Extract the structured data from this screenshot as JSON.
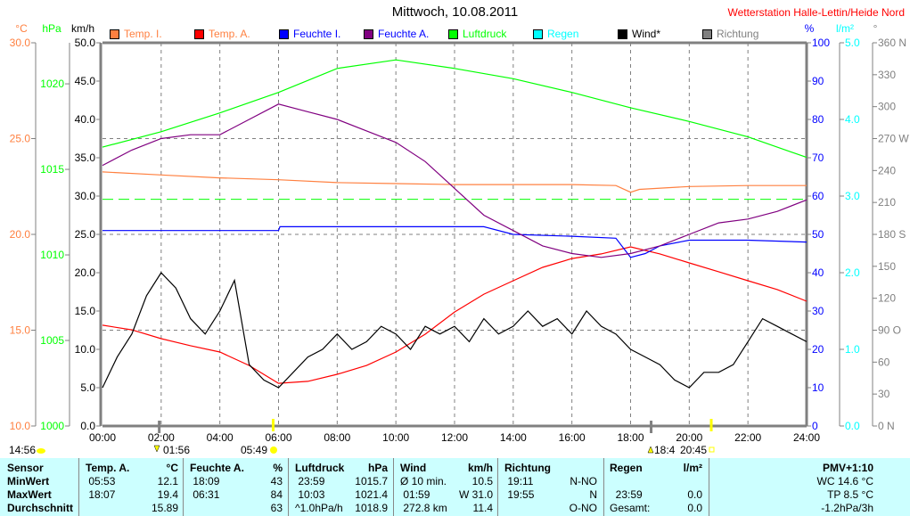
{
  "header": {
    "title": "Mittwoch, 10.08.2011",
    "station": "Wetterstation Halle-Lettin/Heide Nord"
  },
  "legend": [
    {
      "label": "Temp. I.",
      "color": "#ff8040",
      "text_color": "#ff8040"
    },
    {
      "label": "Temp. A.",
      "color": "#ff0000",
      "text_color": "#ff8040"
    },
    {
      "label": "Feuchte I.",
      "color": "#0000ff",
      "text_color": "#0000ff"
    },
    {
      "label": "Feuchte A.",
      "color": "#800080",
      "text_color": "#0000ff"
    },
    {
      "label": "Luftdruck",
      "color": "#00ff00",
      "text_color": "#00ff00"
    },
    {
      "label": "Regen",
      "color": "#00ffff",
      "text_color": "#00ffff"
    },
    {
      "label": "Wind*",
      "color": "#000000",
      "text_color": "#000000"
    },
    {
      "label": "Richtung",
      "color": "#808080",
      "text_color": "#808080"
    }
  ],
  "chart_data": {
    "type": "line",
    "title": "Mittwoch, 10.08.2011",
    "x_ticks": [
      "00:00",
      "02:00",
      "04:00",
      "06:00",
      "08:00",
      "10:00",
      "12:00",
      "14:00",
      "16:00",
      "18:00",
      "20:00",
      "22:00",
      "24:00"
    ],
    "xlim": [
      0,
      24
    ],
    "grid": true,
    "axes": {
      "temp": {
        "unit": "°C",
        "range": [
          10,
          30
        ],
        "ticks": [
          "10.0",
          "15.0",
          "20.0",
          "25.0",
          "30.0"
        ],
        "color": "#ff8040"
      },
      "pressure": {
        "unit": "hPa",
        "range": [
          1000,
          1022.4
        ],
        "ticks": [
          "1000",
          "1005",
          "1010",
          "1015",
          "1020"
        ],
        "color": "#00ff00"
      },
      "wind": {
        "unit": "km/h",
        "range": [
          0,
          50
        ],
        "ticks": [
          "0.0",
          "5.0",
          "10.0",
          "15.0",
          "20.0",
          "25.0",
          "30.0",
          "35.0",
          "40.0",
          "45.0",
          "50.0"
        ],
        "color": "#000000"
      },
      "humidity": {
        "unit": "%",
        "range": [
          0,
          100
        ],
        "ticks": [
          "0",
          "10",
          "20",
          "30",
          "40",
          "50",
          "60",
          "70",
          "80",
          "90",
          "100"
        ],
        "color": "#0000ff"
      },
      "rain": {
        "unit": "l/m²",
        "range": [
          0,
          5
        ],
        "ticks": [
          "0.0",
          "1.0",
          "2.0",
          "3.0",
          "4.0",
          "5.0"
        ],
        "color": "#00ffff"
      },
      "direction": {
        "unit": "°",
        "range": [
          0,
          360
        ],
        "ticks": [
          "0   N",
          "30",
          "60",
          "90  O",
          "120",
          "150",
          "180 S",
          "210",
          "240",
          "270 W",
          "300",
          "330",
          "360 N"
        ],
        "color": "#808080"
      }
    },
    "reference_pressure": 1013.25,
    "series": [
      {
        "name": "Temp. I.",
        "axis": "temp",
        "color": "#ff8040",
        "x": [
          0,
          2,
          4,
          6,
          8,
          10,
          12,
          14,
          16,
          17.5,
          18,
          18.3,
          20,
          22,
          24
        ],
        "y": [
          23.26,
          23.1,
          22.95,
          22.85,
          22.7,
          22.65,
          22.6,
          22.6,
          22.6,
          22.55,
          22.2,
          22.35,
          22.5,
          22.55,
          22.55
        ]
      },
      {
        "name": "Temp. A.",
        "axis": "temp",
        "color": "#ff0000",
        "x": [
          0,
          1,
          2,
          3,
          4,
          5,
          6,
          7,
          8,
          9,
          10,
          11,
          12,
          13,
          14,
          15,
          16,
          17,
          18,
          19,
          20,
          21,
          22,
          23,
          24
        ],
        "y": [
          15.26,
          15.02,
          14.56,
          14.19,
          13.86,
          13.16,
          12.23,
          12.33,
          12.7,
          13.16,
          13.86,
          14.79,
          15.95,
          16.88,
          17.58,
          18.28,
          18.74,
          18.98,
          19.35,
          18.98,
          18.51,
          18.05,
          17.58,
          17.12,
          16.51
        ]
      },
      {
        "name": "Feuchte I.",
        "axis": "humidity",
        "color": "#0000ff",
        "x": [
          0,
          6,
          6.05,
          13,
          14,
          16,
          17.5,
          18,
          18.5,
          19,
          20,
          22,
          24
        ],
        "y": [
          51,
          51,
          52,
          52,
          50,
          49.5,
          49,
          44,
          45,
          47,
          48.5,
          48.5,
          48
        ]
      },
      {
        "name": "Feuchte A.",
        "axis": "humidity",
        "color": "#800080",
        "x": [
          0,
          1,
          2,
          3,
          4,
          5,
          6,
          7,
          8,
          9,
          10,
          11,
          12,
          13,
          14,
          15,
          16,
          17,
          18,
          19,
          20,
          21,
          22,
          23,
          24
        ],
        "y": [
          68,
          72,
          75,
          76,
          76,
          80,
          84,
          82,
          80,
          77,
          74,
          69,
          62,
          55,
          51,
          47,
          45,
          44,
          45,
          47,
          50,
          53,
          54,
          56,
          59
        ]
      },
      {
        "name": "Luftdruck",
        "axis": "pressure",
        "color": "#00ff00",
        "x": [
          0,
          2,
          4,
          6,
          8,
          10,
          12,
          14,
          16,
          18,
          20,
          22,
          24
        ],
        "y": [
          1016.3,
          1017.2,
          1018.3,
          1019.5,
          1020.9,
          1021.4,
          1020.9,
          1020.3,
          1019.5,
          1018.6,
          1017.8,
          1016.9,
          1015.7
        ]
      },
      {
        "name": "Wind*",
        "axis": "wind",
        "color": "#000000",
        "x": [
          0,
          0.5,
          1,
          1.5,
          2,
          2.5,
          3,
          3.5,
          4,
          4.5,
          5,
          5.5,
          6,
          6.5,
          7,
          7.5,
          8,
          8.5,
          9,
          9.5,
          10,
          10.5,
          11,
          11.5,
          12,
          12.5,
          13,
          13.5,
          14,
          14.5,
          15,
          15.5,
          16,
          16.5,
          17,
          17.5,
          18,
          18.5,
          19,
          19.5,
          20,
          20.5,
          21,
          21.5,
          22,
          22.5,
          23,
          23.5,
          24
        ],
        "y": [
          5,
          9,
          12,
          17,
          20,
          18,
          14,
          12,
          15,
          19,
          8,
          6,
          5,
          7,
          9,
          10,
          12,
          10,
          11,
          13,
          12,
          10,
          13,
          12,
          13,
          11,
          14,
          12,
          13,
          15,
          13,
          14,
          12,
          15,
          13,
          12,
          10,
          9,
          8,
          6,
          5,
          7,
          7,
          8,
          11,
          14,
          13,
          12,
          11
        ]
      }
    ]
  },
  "events": {
    "moon": "14:56",
    "moonset": "01:56",
    "sunrise": "05:49",
    "moonrise": "18:4",
    "sunset": "20:45"
  },
  "table": {
    "row_labels": [
      "Sensor",
      "MinWert",
      "MaxWert",
      "Durchschnitt"
    ],
    "temp": {
      "title": "Temp. A.",
      "unit": "°C",
      "min_time": "05:53",
      "min": "12.1",
      "max_time": "18:07",
      "max": "19.4",
      "avg": "15.89"
    },
    "hum": {
      "title": "Feuchte A.",
      "unit": "%",
      "min_time": "18:09",
      "min": "43",
      "max_time": "06:31",
      "max": "84",
      "avg": "63"
    },
    "press": {
      "title": "Luftdruck",
      "unit": "hPa",
      "min_time": "23:59",
      "min": "1015.7",
      "max_time": "10:03",
      "max": "1021.4",
      "trend": "^1.0hPa/h",
      "avg": "1018.9"
    },
    "wind": {
      "title": "Wind",
      "unit": "km/h",
      "r1_label": "Ø 10 min.",
      "r1": "10.5",
      "r2_time": "01:59",
      "r2": "W 31.0",
      "r3_label": "272.8 km",
      "r3": "11.4"
    },
    "dir": {
      "title": "Richtung",
      "r1_time": "19:11",
      "r1": "N-NO",
      "r2_time": "19:55",
      "r2": "N",
      "r3": "O-NO"
    },
    "rain": {
      "title": "Regen",
      "unit": "l/m²",
      "r2_time": "23:59",
      "r2": "0.0",
      "r3_label": "Gesamt:",
      "r3": "0.0"
    },
    "pmv": {
      "title": "PMV+1:10",
      "wc": "WC 14.6 °C",
      "tp": "TP 8.5 °C",
      "trend": "-1.2hPa/3h"
    }
  }
}
